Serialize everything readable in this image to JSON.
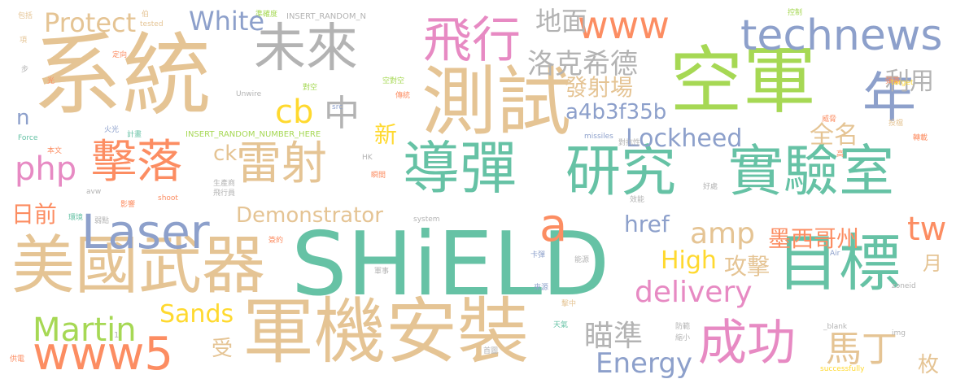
{
  "palette": {
    "green": "#66c2a5",
    "orange": "#fc8d62",
    "blue": "#8da0cb",
    "pink": "#e78ac3",
    "lime": "#a6d854",
    "yellow": "#ffd92f",
    "tan": "#e5c494",
    "gray": "#b3b3b3"
  },
  "words": [
    {
      "text": "SHiELD",
      "color": "#66c2a5",
      "vertical": false
    },
    {
      "text": "系統",
      "color": "#e5c494",
      "vertical": false
    },
    {
      "text": "空軍",
      "color": "#a6d854",
      "vertical": false
    },
    {
      "text": "測試",
      "color": "#e5c494",
      "vertical": false
    },
    {
      "text": "軍機安裝",
      "color": "#e5c494",
      "vertical": false
    },
    {
      "text": "美國武器",
      "color": "#e5c494",
      "vertical": false
    },
    {
      "text": "導彈",
      "color": "#66c2a5",
      "vertical": false
    },
    {
      "text": "研究",
      "color": "#66c2a5",
      "vertical": false
    },
    {
      "text": "實驗室",
      "color": "#66c2a5",
      "vertical": false
    },
    {
      "text": "目標",
      "color": "#66c2a5",
      "vertical": false
    },
    {
      "text": "年",
      "color": "#8da0cb",
      "vertical": false
    },
    {
      "text": "未來",
      "color": "#b3b3b3",
      "vertical": false
    },
    {
      "text": "飛行",
      "color": "#e78ac3",
      "vertical": false
    },
    {
      "text": "technews",
      "color": "#8da0cb",
      "vertical": false
    },
    {
      "text": "www",
      "color": "#fc8d62",
      "vertical": false
    },
    {
      "text": "Laser",
      "color": "#8da0cb",
      "vertical": false
    },
    {
      "text": "www5",
      "color": "#fc8d62",
      "vertical": false
    },
    {
      "text": "成功",
      "color": "#e78ac3",
      "vertical": false
    },
    {
      "text": "擊落",
      "color": "#fc8d62",
      "vertical": false
    },
    {
      "text": "雷射",
      "color": "#e5c494",
      "vertical": false
    },
    {
      "text": "a",
      "color": "#fc8d62",
      "vertical": false
    },
    {
      "text": "中",
      "color": "#b3b3b3",
      "vertical": false
    },
    {
      "text": "cb",
      "color": "#ffd92f",
      "vertical": false
    },
    {
      "text": "php",
      "color": "#e78ac3",
      "vertical": false
    },
    {
      "text": "Protect",
      "color": "#e5c494",
      "vertical": false
    },
    {
      "text": "White",
      "color": "#8da0cb",
      "vertical": false
    },
    {
      "text": "洛克希德",
      "color": "#b3b3b3",
      "vertical": false
    },
    {
      "text": "地面",
      "color": "#b3b3b3",
      "vertical": false
    },
    {
      "text": "利用",
      "color": "#b3b3b3",
      "vertical": false
    },
    {
      "text": "發射場",
      "color": "#e5c494",
      "vertical": false
    },
    {
      "text": "a4b3f35b",
      "color": "#8da0cb",
      "vertical": false
    },
    {
      "text": "Lockheed",
      "color": "#8da0cb",
      "vertical": false
    },
    {
      "text": "全名",
      "color": "#e5c494",
      "vertical": false
    },
    {
      "text": "Demonstrator",
      "color": "#e5c494",
      "vertical": false
    },
    {
      "text": "amp",
      "color": "#e5c494",
      "vertical": false
    },
    {
      "text": "tw",
      "color": "#fc8d62",
      "vertical": false
    },
    {
      "text": "墨西哥州",
      "color": "#fc8d62",
      "vertical": false
    },
    {
      "text": "href",
      "color": "#8da0cb",
      "vertical": false
    },
    {
      "text": "High",
      "color": "#ffd92f",
      "vertical": false
    },
    {
      "text": "攻擊",
      "color": "#e5c494",
      "vertical": false
    },
    {
      "text": "delivery",
      "color": "#e78ac3",
      "vertical": false
    },
    {
      "text": "Martin",
      "color": "#a6d854",
      "vertical": false
    },
    {
      "text": "Sands",
      "color": "#ffd92f",
      "vertical": false
    },
    {
      "text": "瞄準",
      "color": "#b3b3b3",
      "vertical": false
    },
    {
      "text": "馬丁",
      "color": "#e5c494",
      "vertical": false
    },
    {
      "text": "Energy",
      "color": "#8da0cb",
      "vertical": false
    },
    {
      "text": "日前",
      "color": "#fc8d62",
      "vertical": false
    },
    {
      "text": "ck",
      "color": "#e5c494",
      "vertical": false
    },
    {
      "text": "n",
      "color": "#8da0cb",
      "vertical": false
    },
    {
      "text": "新",
      "color": "#ffd92f",
      "vertical": false
    },
    {
      "text": "受",
      "color": "#e5c494",
      "vertical": false
    },
    {
      "text": "月",
      "color": "#e5c494",
      "vertical": false
    },
    {
      "text": "枚",
      "color": "#e5c494",
      "vertical": false
    },
    {
      "text": "INSERT_RANDOM_N",
      "color": "#b3b3b3",
      "vertical": false
    },
    {
      "text": "INSERT_RANDOM_NUMBER_HERE",
      "color": "#a6d854",
      "vertical": false
    },
    {
      "text": "包括",
      "color": "#e5c494",
      "vertical": false
    },
    {
      "text": "項",
      "color": "#e5c494",
      "vertical": false
    },
    {
      "text": "步",
      "color": "#b3b3b3",
      "vertical": false
    },
    {
      "text": "光",
      "color": "#fc8d62",
      "vertical": false
    },
    {
      "text": "伯",
      "color": "#e5c494",
      "vertical": false
    },
    {
      "text": "tested",
      "color": "#e5c494",
      "vertical": false
    },
    {
      "text": "準確度",
      "color": "#a6d854",
      "vertical": false
    },
    {
      "text": "定向",
      "color": "#fc8d62",
      "vertical": false
    },
    {
      "text": "Unwire",
      "color": "#b3b3b3",
      "vertical": false
    },
    {
      "text": "src",
      "color": "#8da0cb",
      "vertical": false
    },
    {
      "text": "對空",
      "color": "#a6d854",
      "vertical": false
    },
    {
      "text": "空對空",
      "color": "#a6d854",
      "vertical": false
    },
    {
      "text": "傳統",
      "color": "#fc8d62",
      "vertical": false
    },
    {
      "text": "控制",
      "color": "#a6d854",
      "vertical": false
    },
    {
      "text": "彈藥",
      "color": "#fc8d62",
      "vertical": false
    },
    {
      "text": "target",
      "color": "#ffd92f",
      "vertical": false
    },
    {
      "text": "火光",
      "color": "#8da0cb",
      "vertical": false
    },
    {
      "text": "計畫",
      "color": "#66c2a5",
      "vertical": false
    },
    {
      "text": "Force",
      "color": "#66c2a5",
      "vertical": false
    },
    {
      "text": "missiles",
      "color": "#8da0cb",
      "vertical": false
    },
    {
      "text": "威脅",
      "color": "#fc8d62",
      "vertical": false
    },
    {
      "text": "對抗性",
      "color": "#b3b3b3",
      "vertical": false
    },
    {
      "text": "投檔",
      "color": "#e5c494",
      "vertical": false
    },
    {
      "text": "轉載",
      "color": "#fc8d62",
      "vertical": false
    },
    {
      "text": "本文",
      "color": "#fc8d62",
      "vertical": false
    },
    {
      "text": "HK",
      "color": "#b3b3b3",
      "vertical": false
    },
    {
      "text": "瞬間",
      "color": "#fc8d62",
      "vertical": false
    },
    {
      "text": "高",
      "color": "#fc8d62",
      "vertical": false
    },
    {
      "text": "生產商",
      "color": "#b3b3b3",
      "vertical": false
    },
    {
      "text": "avw",
      "color": "#b3b3b3",
      "vertical": false
    },
    {
      "text": "飛行員",
      "color": "#b3b3b3",
      "vertical": false
    },
    {
      "text": "shoot",
      "color": "#fc8d62",
      "vertical": false
    },
    {
      "text": "影響",
      "color": "#fc8d62",
      "vertical": false
    },
    {
      "text": "效能",
      "color": "#b3b3b3",
      "vertical": false
    },
    {
      "text": "好處",
      "color": "#b3b3b3",
      "vertical": false
    },
    {
      "text": "環境",
      "color": "#66c2a5",
      "vertical": false
    },
    {
      "text": "弱點",
      "color": "#b3b3b3",
      "vertical": false
    },
    {
      "text": "system",
      "color": "#b3b3b3",
      "vertical": false
    },
    {
      "text": "簽約",
      "color": "#fc8d62",
      "vertical": false
    },
    {
      "text": "卡彈",
      "color": "#8da0cb",
      "vertical": false
    },
    {
      "text": "能源",
      "color": "#b3b3b3",
      "vertical": false
    },
    {
      "text": "Air",
      "color": "#8da0cb",
      "vertical": false
    },
    {
      "text": "軍事",
      "color": "#b3b3b3",
      "vertical": false
    },
    {
      "text": "zoneid",
      "color": "#b3b3b3",
      "vertical": false
    },
    {
      "text": "來源",
      "color": "#8da0cb",
      "vertical": false
    },
    {
      "text": "擊中",
      "color": "#e5c494",
      "vertical": false
    },
    {
      "text": "天氣",
      "color": "#66c2a5",
      "vertical": false
    },
    {
      "text": "防範",
      "color": "#b3b3b3",
      "vertical": false
    },
    {
      "text": "縮小",
      "color": "#b3b3b3",
      "vertical": false
    },
    {
      "text": "_blank",
      "color": "#b3b3b3",
      "vertical": false
    },
    {
      "text": "img",
      "color": "#b3b3b3",
      "vertical": false
    },
    {
      "text": "首圖",
      "color": "#b3b3b3",
      "vertical": false
    },
    {
      "text": "供電",
      "color": "#fc8d62",
      "vertical": false
    },
    {
      "text": "successfully",
      "color": "#ffd92f",
      "vertical": false
    },
    {
      "text": "1",
      "color": "#b3b3b3",
      "vertical": false
    }
  ]
}
